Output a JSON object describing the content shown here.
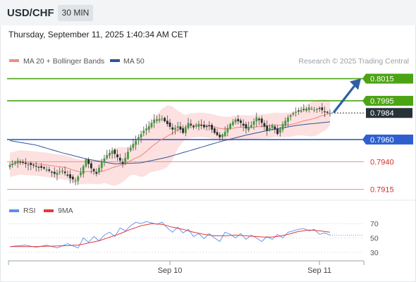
{
  "header": {
    "symbol": "USD/CHF",
    "timeframe": "30 MIN"
  },
  "timestamp": "Thursday, September 11, 2025 1:40:34 AM CET",
  "chart_data": [
    {
      "type": "candlestick",
      "legend": [
        {
          "label": "MA 20 + Bollinger Bands",
          "color": "#f28b82"
        },
        {
          "label": "MA 50",
          "color": "#2f5597"
        }
      ],
      "credit": "Research © 2025 Trading Central",
      "ylim": [
        0.7909,
        0.8023
      ],
      "levels": [
        {
          "value": 0.8015,
          "label": "0.8015",
          "kind": "resistance"
        },
        {
          "value": 0.7995,
          "label": "0.7995",
          "kind": "resistance"
        },
        {
          "value": 0.7984,
          "label": "0.7984",
          "kind": "last"
        },
        {
          "value": 0.796,
          "label": "0.7960",
          "kind": "pivot"
        },
        {
          "value": 0.794,
          "label": "0.7940",
          "kind": "support"
        },
        {
          "value": 0.7915,
          "label": "0.7915",
          "kind": "support"
        }
      ],
      "forecast_arrow": {
        "from": 0.7985,
        "to": 0.8015,
        "direction": "up"
      },
      "close_anchors": [
        [
          0,
          0.7937
        ],
        [
          3,
          0.7941
        ],
        [
          6,
          0.7938
        ],
        [
          10,
          0.7936
        ],
        [
          14,
          0.7933
        ],
        [
          17,
          0.7929
        ],
        [
          20,
          0.7932
        ],
        [
          23,
          0.7925
        ],
        [
          25,
          0.7923
        ],
        [
          27,
          0.793
        ],
        [
          29,
          0.7942
        ],
        [
          31,
          0.7934
        ],
        [
          33,
          0.7929
        ],
        [
          35,
          0.794
        ],
        [
          37,
          0.7946
        ],
        [
          39,
          0.795
        ],
        [
          41,
          0.7944
        ],
        [
          43,
          0.7938
        ],
        [
          45,
          0.7949
        ],
        [
          47,
          0.7956
        ],
        [
          49,
          0.7962
        ],
        [
          51,
          0.7968
        ],
        [
          53,
          0.7972
        ],
        [
          55,
          0.7978
        ],
        [
          58,
          0.7979
        ],
        [
          60,
          0.7974
        ],
        [
          62,
          0.7969
        ],
        [
          64,
          0.7972
        ],
        [
          66,
          0.7966
        ],
        [
          68,
          0.7975
        ],
        [
          70,
          0.7971
        ],
        [
          72,
          0.7974
        ],
        [
          74,
          0.7971
        ],
        [
          76,
          0.7972
        ],
        [
          78,
          0.7966
        ],
        [
          80,
          0.7962
        ],
        [
          82,
          0.7967
        ],
        [
          84,
          0.7974
        ],
        [
          86,
          0.7978
        ],
        [
          88,
          0.7975
        ],
        [
          90,
          0.797
        ],
        [
          92,
          0.7973
        ],
        [
          94,
          0.798
        ],
        [
          96,
          0.7975
        ],
        [
          98,
          0.7968
        ],
        [
          100,
          0.7973
        ],
        [
          102,
          0.7965
        ],
        [
          104,
          0.7974
        ],
        [
          106,
          0.798
        ],
        [
          108,
          0.7984
        ],
        [
          110,
          0.7986
        ],
        [
          112,
          0.7987
        ],
        [
          114,
          0.7989
        ],
        [
          116,
          0.7987
        ],
        [
          118,
          0.7988
        ],
        [
          120,
          0.7985
        ],
        [
          122,
          0.7984
        ]
      ],
      "ma50_anchors": [
        [
          0,
          0.7959
        ],
        [
          10,
          0.7955
        ],
        [
          20,
          0.7948
        ],
        [
          30,
          0.7942
        ],
        [
          40,
          0.7938
        ],
        [
          50,
          0.7939
        ],
        [
          60,
          0.7944
        ],
        [
          70,
          0.7951
        ],
        [
          80,
          0.7958
        ],
        [
          90,
          0.7964
        ],
        [
          100,
          0.7969
        ],
        [
          110,
          0.7973
        ],
        [
          122,
          0.7976
        ]
      ],
      "x_ticks": [
        {
          "index": 61,
          "label": "Sep 10"
        },
        {
          "index": 118,
          "label": "Sep 11"
        }
      ]
    },
    {
      "type": "line",
      "legend": [
        {
          "label": "RSI",
          "color": "#5b8def"
        },
        {
          "label": "9MA",
          "color": "#e53935"
        }
      ],
      "ylim": [
        20,
        82
      ],
      "y_ticks": [
        30,
        50,
        70
      ],
      "rsi_anchors": [
        [
          0,
          38
        ],
        [
          6,
          40
        ],
        [
          10,
          37
        ],
        [
          14,
          40
        ],
        [
          18,
          36
        ],
        [
          22,
          42
        ],
        [
          26,
          36
        ],
        [
          28,
          50
        ],
        [
          30,
          44
        ],
        [
          32,
          52
        ],
        [
          34,
          46
        ],
        [
          36,
          54
        ],
        [
          38,
          58
        ],
        [
          40,
          52
        ],
        [
          42,
          64
        ],
        [
          44,
          60
        ],
        [
          46,
          67
        ],
        [
          48,
          72
        ],
        [
          50,
          70
        ],
        [
          52,
          73
        ],
        [
          54,
          71
        ],
        [
          56,
          69
        ],
        [
          58,
          72
        ],
        [
          60,
          64
        ],
        [
          62,
          58
        ],
        [
          64,
          65
        ],
        [
          66,
          57
        ],
        [
          68,
          62
        ],
        [
          70,
          52
        ],
        [
          72,
          56
        ],
        [
          74,
          49
        ],
        [
          76,
          56
        ],
        [
          78,
          50
        ],
        [
          80,
          45
        ],
        [
          82,
          58
        ],
        [
          84,
          55
        ],
        [
          86,
          50
        ],
        [
          88,
          56
        ],
        [
          90,
          48
        ],
        [
          92,
          54
        ],
        [
          94,
          50
        ],
        [
          96,
          45
        ],
        [
          98,
          52
        ],
        [
          100,
          48
        ],
        [
          102,
          55
        ],
        [
          104,
          50
        ],
        [
          106,
          58
        ],
        [
          108,
          60
        ],
        [
          110,
          62
        ],
        [
          112,
          63
        ],
        [
          114,
          60
        ],
        [
          116,
          62
        ],
        [
          118,
          55
        ],
        [
          120,
          57
        ],
        [
          122,
          54
        ]
      ],
      "ma9_anchors": [
        [
          0,
          38
        ],
        [
          10,
          38
        ],
        [
          20,
          39
        ],
        [
          26,
          40
        ],
        [
          30,
          43
        ],
        [
          34,
          46
        ],
        [
          38,
          51
        ],
        [
          42,
          56
        ],
        [
          46,
          62
        ],
        [
          50,
          67
        ],
        [
          54,
          70
        ],
        [
          58,
          69
        ],
        [
          62,
          65
        ],
        [
          66,
          62
        ],
        [
          70,
          58
        ],
        [
          74,
          55
        ],
        [
          78,
          53
        ],
        [
          82,
          53
        ],
        [
          86,
          54
        ],
        [
          90,
          53
        ],
        [
          94,
          52
        ],
        [
          98,
          51
        ],
        [
          102,
          52
        ],
        [
          106,
          55
        ],
        [
          110,
          59
        ],
        [
          114,
          61
        ],
        [
          118,
          60
        ],
        [
          122,
          58
        ]
      ]
    }
  ]
}
